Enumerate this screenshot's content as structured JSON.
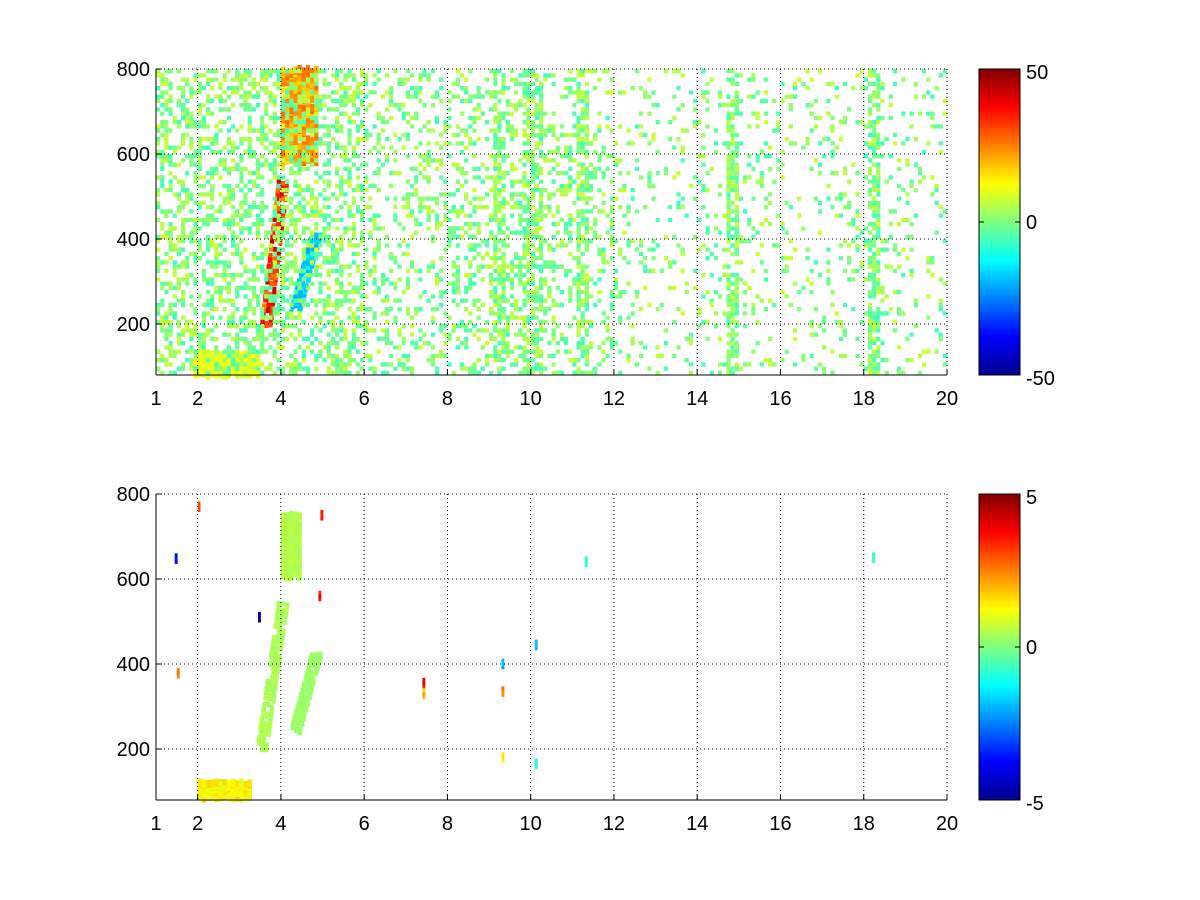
{
  "figure": {
    "background": "#ffffff",
    "colormap": "jet",
    "colormap_stops": [
      "#00008f",
      "#0000ff",
      "#00ffff",
      "#80ff80",
      "#ffff00",
      "#ff0000",
      "#800000"
    ]
  },
  "chart_data": [
    {
      "type": "heatmap",
      "title": "",
      "xlabel": "",
      "ylabel": "",
      "xlim": [
        1,
        20
      ],
      "ylim": [
        80,
        800
      ],
      "x_ticks": [
        1,
        2,
        4,
        6,
        8,
        10,
        12,
        14,
        16,
        18,
        20
      ],
      "y_ticks": [
        200,
        400,
        600,
        800
      ],
      "grid": true,
      "grid_style": "dotted",
      "colorbar": {
        "range": [
          -50,
          50
        ],
        "ticks": [
          50,
          0,
          -50
        ]
      },
      "features": [
        {
          "description": "strong positive ridge",
          "x_start": 3.6,
          "x_end": 4.0,
          "y_start": 200,
          "y_end": 530,
          "value": 40
        },
        {
          "description": "negative ridge",
          "x_start": 4.3,
          "x_end": 4.8,
          "y_start": 230,
          "y_end": 410,
          "value": -20
        },
        {
          "description": "positive patch",
          "x_start": 4.0,
          "x_end": 4.9,
          "y_start": 580,
          "y_end": 800,
          "value": 25
        },
        {
          "description": "positive low band",
          "x_start": 1.9,
          "x_end": 3.5,
          "y_start": 80,
          "y_end": 130,
          "value": 12
        }
      ],
      "background_noise_amplitude": 8,
      "noise_columns": [
        9.2,
        9.9,
        10.1,
        11.2,
        14.8,
        18.2
      ]
    },
    {
      "type": "heatmap",
      "title": "",
      "xlabel": "",
      "ylabel": "",
      "xlim": [
        1,
        20
      ],
      "ylim": [
        80,
        800
      ],
      "x_ticks": [
        1,
        2,
        4,
        6,
        8,
        10,
        12,
        14,
        16,
        18,
        20
      ],
      "y_ticks": [
        200,
        400,
        600,
        800
      ],
      "grid": true,
      "grid_style": "dotted",
      "colorbar": {
        "range": [
          -5,
          5
        ],
        "ticks": [
          5,
          0,
          -5
        ]
      },
      "features": [
        {
          "description": "ridge",
          "x_start": 3.5,
          "x_end": 4.0,
          "y_start": 200,
          "y_end": 540,
          "value": 0.5
        },
        {
          "description": "ridge",
          "x_start": 4.3,
          "x_end": 4.8,
          "y_start": 240,
          "y_end": 420,
          "value": 0.3
        },
        {
          "description": "patch",
          "x_start": 4.0,
          "x_end": 4.5,
          "y_start": 600,
          "y_end": 750,
          "value": 0.6
        },
        {
          "description": "low band",
          "x_start": 2.0,
          "x_end": 3.3,
          "y_start": 85,
          "y_end": 120,
          "value": 1.5
        }
      ],
      "spots": [
        {
          "x": 1.45,
          "y": 648,
          "value": -4
        },
        {
          "x": 1.5,
          "y": 378,
          "value": 3
        },
        {
          "x": 2.0,
          "y": 770,
          "value": 3.5
        },
        {
          "x": 3.45,
          "y": 510,
          "value": -4.5
        },
        {
          "x": 4.9,
          "y": 560,
          "value": 4
        },
        {
          "x": 4.95,
          "y": 750,
          "value": 4
        },
        {
          "x": 7.4,
          "y": 355,
          "value": 4
        },
        {
          "x": 7.4,
          "y": 330,
          "value": 2
        },
        {
          "x": 9.3,
          "y": 400,
          "value": -2
        },
        {
          "x": 9.3,
          "y": 335,
          "value": 2.5
        },
        {
          "x": 9.3,
          "y": 180,
          "value": 1.5
        },
        {
          "x": 10.1,
          "y": 445,
          "value": -2
        },
        {
          "x": 10.1,
          "y": 165,
          "value": -1
        },
        {
          "x": 11.3,
          "y": 640,
          "value": -1
        },
        {
          "x": 18.2,
          "y": 650,
          "value": -0.8
        }
      ]
    }
  ]
}
